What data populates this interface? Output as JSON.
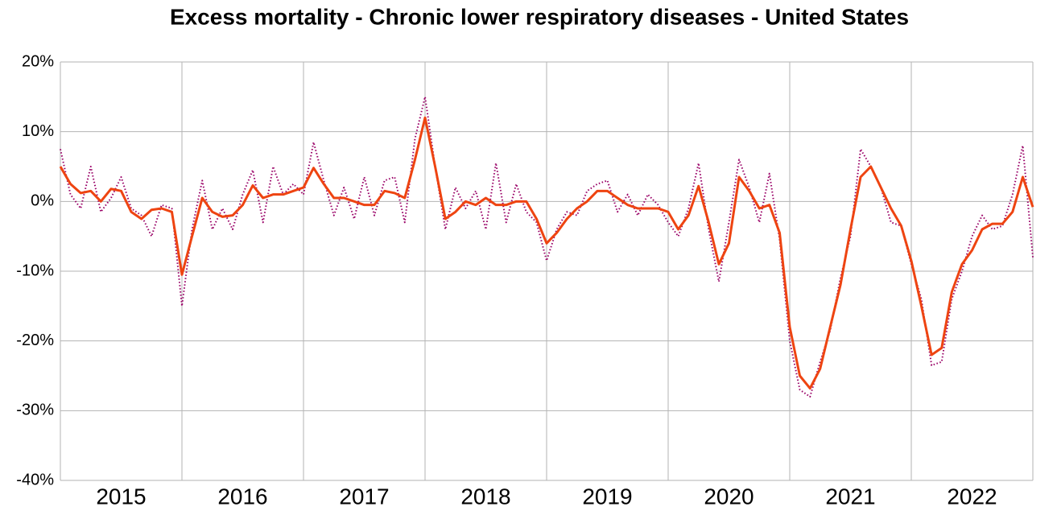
{
  "chart_data": {
    "type": "line",
    "title": "Excess mortality - Chronic lower respiratory diseases - United States",
    "xlim": [
      2015,
      2023
    ],
    "xticks": [
      {
        "value": 2015,
        "label": "2015"
      },
      {
        "value": 2016,
        "label": "2016"
      },
      {
        "value": 2017,
        "label": "2017"
      },
      {
        "value": 2018,
        "label": "2018"
      },
      {
        "value": 2019,
        "label": "2019"
      },
      {
        "value": 2020,
        "label": "2020"
      },
      {
        "value": 2021,
        "label": "2021"
      },
      {
        "value": 2022,
        "label": "2022"
      }
    ],
    "ylim": [
      -40,
      20
    ],
    "yticks": [
      {
        "value": -40,
        "label": "-40%"
      },
      {
        "value": -30,
        "label": "-30%"
      },
      {
        "value": -20,
        "label": "-20%"
      },
      {
        "value": -10,
        "label": "-10%"
      },
      {
        "value": 0,
        "label": "0%"
      },
      {
        "value": 10,
        "label": "10%"
      },
      {
        "value": 20,
        "label": "20%"
      }
    ],
    "grid": true,
    "x": [
      2015,
      2015.083,
      2015.167,
      2015.25,
      2015.333,
      2015.417,
      2015.5,
      2015.583,
      2015.667,
      2015.75,
      2015.833,
      2015.917,
      2016,
      2016.083,
      2016.167,
      2016.25,
      2016.333,
      2016.417,
      2016.5,
      2016.583,
      2016.667,
      2016.75,
      2016.833,
      2016.917,
      2017,
      2017.083,
      2017.167,
      2017.25,
      2017.333,
      2017.417,
      2017.5,
      2017.583,
      2017.667,
      2017.75,
      2017.833,
      2017.917,
      2018,
      2018.083,
      2018.167,
      2018.25,
      2018.333,
      2018.417,
      2018.5,
      2018.583,
      2018.667,
      2018.75,
      2018.833,
      2018.917,
      2019,
      2019.083,
      2019.167,
      2019.25,
      2019.333,
      2019.417,
      2019.5,
      2019.583,
      2019.667,
      2019.75,
      2019.833,
      2019.917,
      2020,
      2020.083,
      2020.167,
      2020.25,
      2020.333,
      2020.417,
      2020.5,
      2020.583,
      2020.667,
      2020.75,
      2020.833,
      2020.917,
      2021,
      2021.083,
      2021.167,
      2021.25,
      2021.333,
      2021.417,
      2021.5,
      2021.583,
      2021.667,
      2021.75,
      2021.833,
      2021.917,
      2022,
      2022.083,
      2022.167,
      2022.25,
      2022.333,
      2022.417,
      2022.5,
      2022.583,
      2022.667,
      2022.75,
      2022.833,
      2022.917,
      2023
    ],
    "series": [
      {
        "color": "#990066",
        "style": "dotted",
        "values": [
          7.5,
          1,
          -1,
          5,
          -1.5,
          0.5,
          3.5,
          -1,
          -2,
          -5,
          -0.5,
          -1,
          -15,
          -4,
          3,
          -4,
          -1,
          -4,
          1,
          4.5,
          -3,
          5,
          1,
          2.5,
          1,
          8.5,
          3,
          -2,
          2,
          -2.5,
          3.5,
          -2,
          3,
          3.5,
          -3,
          9,
          15,
          5,
          -4,
          2,
          -1,
          1.5,
          -4,
          5.5,
          -3,
          2.5,
          -1.5,
          -3,
          -8.5,
          -4,
          -1.5,
          -2,
          1.5,
          2.5,
          3,
          -1.5,
          1,
          -2,
          1,
          -0.5,
          -3,
          -5,
          -1,
          5.5,
          -4,
          -11.5,
          -3,
          6,
          2,
          -3,
          4,
          -5.5,
          -20,
          -27,
          -28,
          -23,
          -18.5,
          -11,
          -5,
          7.5,
          5,
          2,
          -3,
          -3.5,
          -9,
          -14,
          -23.5,
          -23,
          -14,
          -10,
          -5,
          -2,
          -4,
          -3.5,
          1,
          8,
          -8
        ]
      },
      {
        "color": "#ee4411",
        "style": "solid",
        "values": [
          5,
          2.5,
          1.2,
          1.5,
          0,
          1.8,
          1.5,
          -1.5,
          -2.5,
          -1.2,
          -1,
          -1.5,
          -10.5,
          -5,
          0.5,
          -1.5,
          -2.2,
          -2,
          -0.5,
          2.3,
          0.5,
          1,
          1,
          1.5,
          2,
          4.8,
          2.5,
          0.5,
          0.5,
          0,
          -0.5,
          -0.5,
          1.5,
          1.2,
          0.5,
          6,
          12,
          5,
          -2.5,
          -1.5,
          0,
          -0.5,
          0.5,
          -0.5,
          -0.5,
          0,
          0,
          -2.5,
          -6,
          -4.5,
          -2.5,
          -1,
          0,
          1.5,
          1.5,
          0.5,
          -0.5,
          -1,
          -1,
          -1,
          -1.5,
          -4,
          -2,
          2.2,
          -3,
          -9,
          -6,
          3.5,
          1.5,
          -1,
          -0.5,
          -4.5,
          -18,
          -25,
          -26.8,
          -24,
          -18,
          -12,
          -4,
          3.5,
          5,
          2,
          -1,
          -3.5,
          -8.5,
          -15,
          -22,
          -21,
          -13,
          -9,
          -7,
          -4,
          -3.2,
          -3.2,
          -1.5,
          3.5,
          -0.8
        ]
      }
    ]
  }
}
